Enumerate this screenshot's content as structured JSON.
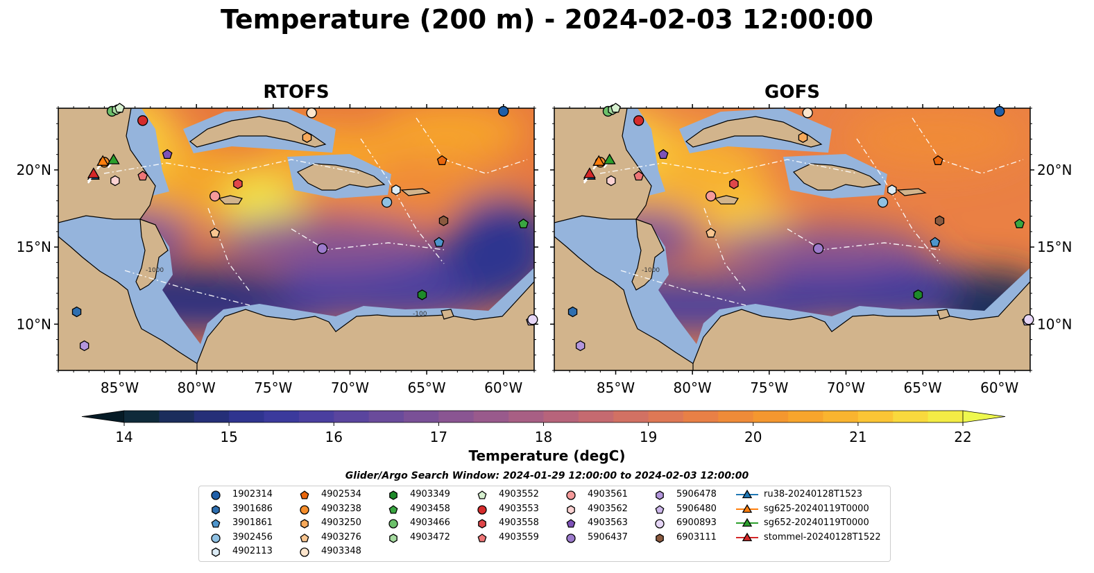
{
  "title": "Temperature (200 m) - 2024-02-03 12:00:00",
  "panels": [
    {
      "id": "rtofs",
      "title": "RTOFS"
    },
    {
      "id": "gofs",
      "title": "GOFS"
    }
  ],
  "map": {
    "lon_range": [
      -89,
      -58
    ],
    "lat_range": [
      7,
      24
    ],
    "lon_ticks": [
      {
        "value": -85,
        "label": "85°W"
      },
      {
        "value": -80,
        "label": "80°W"
      },
      {
        "value": -75,
        "label": "75°W"
      },
      {
        "value": -70,
        "label": "70°W"
      },
      {
        "value": -65,
        "label": "65°W"
      },
      {
        "value": -60,
        "label": "60°W"
      }
    ],
    "lat_ticks": [
      {
        "value": 20,
        "label": "20°N"
      },
      {
        "value": 15,
        "label": "15°N"
      },
      {
        "value": 10,
        "label": "10°N"
      }
    ],
    "contour_labels": [
      "-100",
      "-1000"
    ]
  },
  "colorbar": {
    "label": "Temperature (degC)",
    "min": 14,
    "max": 22,
    "ticks": [
      14,
      15,
      16,
      17,
      18,
      19,
      20,
      21,
      22
    ],
    "colors": [
      "#0f2a3a",
      "#1b2d5c",
      "#252f78",
      "#2f348f",
      "#3b3a9c",
      "#4a3f9f",
      "#5a459e",
      "#6a4b9b",
      "#7a5097",
      "#8a5592",
      "#995a8c",
      "#a85f84",
      "#b7647b",
      "#c56a70",
      "#d27163",
      "#de7855",
      "#e88046",
      "#ef8b38",
      "#f4972f",
      "#f7a52c",
      "#f9b42f",
      "#fbc535",
      "#f9d93d",
      "#f3ec45"
    ],
    "extend_below": "#061b26",
    "extend_above": "#eef84e"
  },
  "search_window": "Glider/Argo Search Window: 2024-01-29 12:00:00 to 2024-02-03 12:00:00",
  "legend": [
    {
      "label": "1902314",
      "marker": "circle",
      "color": "#1f5fa8",
      "lon": -60.0,
      "lat": 23.8
    },
    {
      "label": "3901686",
      "marker": "hexagon",
      "color": "#2f6fb0",
      "lon": -87.8,
      "lat": 10.8
    },
    {
      "label": "3901861",
      "marker": "pentagon",
      "color": "#4e95cc",
      "lon": -64.2,
      "lat": 15.3
    },
    {
      "label": "3902456",
      "marker": "circle",
      "color": "#8fc1e3",
      "lon": -67.6,
      "lat": 17.9
    },
    {
      "label": "4902113",
      "marker": "hexagon",
      "color": "#dcecf6",
      "lon": -67.0,
      "lat": 18.7
    },
    {
      "label": "4902534",
      "marker": "pentagon",
      "color": "#e8660c",
      "lon": -64.0,
      "lat": 20.6
    },
    {
      "label": "4903238",
      "marker": "circle",
      "color": "#f58d2a",
      "lon": -86.0,
      "lat": 20.5
    },
    {
      "label": "4903250",
      "marker": "hexagon",
      "color": "#f7a95a",
      "lon": -72.8,
      "lat": 22.1
    },
    {
      "label": "4903276",
      "marker": "pentagon",
      "color": "#f8c590",
      "lon": -78.8,
      "lat": 15.9
    },
    {
      "label": "4903348",
      "marker": "circle",
      "color": "#fde5cc",
      "lon": -72.5,
      "lat": 23.7
    },
    {
      "label": "4903349",
      "marker": "hexagon",
      "color": "#1e8a2a",
      "lon": -65.3,
      "lat": 11.9
    },
    {
      "label": "4903458",
      "marker": "pentagon",
      "color": "#3aa641",
      "lon": -58.7,
      "lat": 16.5
    },
    {
      "label": "4903466",
      "marker": "circle",
      "color": "#6cc06a",
      "lon": -85.5,
      "lat": 23.8
    },
    {
      "label": "4903472",
      "marker": "hexagon",
      "color": "#a6dba0",
      "lon": -85.2,
      "lat": 23.9
    },
    {
      "label": "4903552",
      "marker": "pentagon",
      "color": "#d6f0cf",
      "lon": -85.0,
      "lat": 24.0
    },
    {
      "label": "4903553",
      "marker": "circle",
      "color": "#d52b2b",
      "lon": -83.5,
      "lat": 23.2
    },
    {
      "label": "4903558",
      "marker": "hexagon",
      "color": "#e0474a",
      "lon": -77.3,
      "lat": 19.1
    },
    {
      "label": "4903559",
      "marker": "pentagon",
      "color": "#ee7677",
      "lon": -83.5,
      "lat": 19.6
    },
    {
      "label": "4903561",
      "marker": "circle",
      "color": "#f59a9a",
      "lon": -78.8,
      "lat": 18.3
    },
    {
      "label": "4903562",
      "marker": "hexagon",
      "color": "#fbd2d2",
      "lon": -85.3,
      "lat": 19.3
    },
    {
      "label": "4903563",
      "marker": "pentagon",
      "color": "#7e52b8",
      "lon": -81.9,
      "lat": 21.0
    },
    {
      "label": "5906437",
      "marker": "circle",
      "color": "#9c7bcc",
      "lon": -71.8,
      "lat": 14.9
    },
    {
      "label": "5906478",
      "marker": "hexagon",
      "color": "#b396dc",
      "lon": -87.3,
      "lat": 8.6
    },
    {
      "label": "5906480",
      "marker": "pentagon",
      "color": "#cdb7ea",
      "lon": -58.2,
      "lat": 10.2
    },
    {
      "label": "6900893",
      "marker": "circle",
      "color": "#e6d6f6",
      "lon": -58.1,
      "lat": 10.3
    },
    {
      "label": "6903111",
      "marker": "hexagon",
      "color": "#8b5a3f",
      "lon": -63.9,
      "lat": 16.7
    },
    {
      "label": "ru38-20240128T1523",
      "marker": "triangle",
      "color": "#1f77b4",
      "lon": -86.7,
      "lat": 19.6,
      "track": true
    },
    {
      "label": "sg625-20240119T0000",
      "marker": "triangle",
      "color": "#ff7f0e",
      "lon": -86.1,
      "lat": 20.5,
      "track": true
    },
    {
      "label": "sg652-20240119T0000",
      "marker": "triangle",
      "color": "#2ca02c",
      "lon": -85.4,
      "lat": 20.6,
      "track": true
    },
    {
      "label": "stommel-20240128T1522",
      "marker": "triangle",
      "color": "#d62728",
      "lon": -86.7,
      "lat": 19.7,
      "track": true
    }
  ]
}
